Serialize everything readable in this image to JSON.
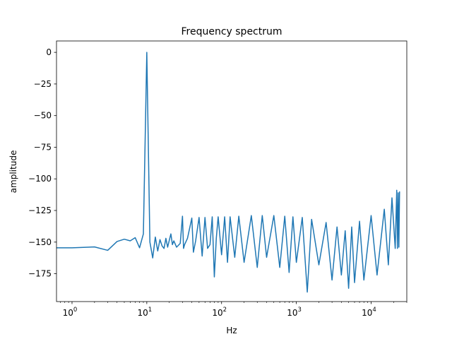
{
  "chart_data": {
    "type": "line",
    "title": "Frequency spectrum",
    "xlabel": "Hz",
    "ylabel": "amplitude",
    "x_scale": "log",
    "xlim": [
      0.62,
      30000
    ],
    "ylim": [
      -197,
      9
    ],
    "grid": false,
    "legend": "none",
    "line_color": "#1f77b4",
    "y_ticks": [
      0,
      -25,
      -50,
      -75,
      -100,
      -125,
      -150,
      -175
    ],
    "y_tick_labels": [
      "0",
      "−25",
      "−50",
      "−75",
      "−100",
      "−125",
      "−150",
      "−175"
    ],
    "x_ticks": [
      1,
      10,
      100,
      1000,
      10000
    ],
    "x_tick_labels": [
      {
        "base": "10",
        "exp": "0"
      },
      {
        "base": "10",
        "exp": "1"
      },
      {
        "base": "10",
        "exp": "2"
      },
      {
        "base": "10",
        "exp": "3"
      },
      {
        "base": "10",
        "exp": "4"
      }
    ],
    "series": [
      {
        "values": [
          [
            0.5,
            -154.5
          ],
          [
            1,
            -154.5
          ],
          [
            2,
            -153.8
          ],
          [
            3,
            -156.5
          ],
          [
            4,
            -149.5
          ],
          [
            5,
            -147.7
          ],
          [
            6,
            -149.0
          ],
          [
            7,
            -146.5
          ],
          [
            8,
            -154.5
          ],
          [
            9,
            -143.5
          ],
          [
            10,
            0
          ],
          [
            11,
            -150.0
          ],
          [
            12,
            -162.5
          ],
          [
            13,
            -146.0
          ],
          [
            14,
            -157.0
          ],
          [
            15,
            -148.0
          ],
          [
            16,
            -153.0
          ],
          [
            17,
            -155.0
          ],
          [
            18,
            -147.0
          ],
          [
            19,
            -154.0
          ],
          [
            20,
            -148.5
          ],
          [
            21,
            -143.5
          ],
          [
            22,
            -152.0
          ],
          [
            23,
            -149.0
          ],
          [
            25,
            -154.0
          ],
          [
            28,
            -151.0
          ],
          [
            30,
            -129.5
          ],
          [
            31,
            -155.0
          ],
          [
            32,
            -152.0
          ],
          [
            35,
            -147.0
          ],
          [
            40,
            -131.0
          ],
          [
            42,
            -158.0
          ],
          [
            45,
            -149.0
          ],
          [
            50,
            -130.5
          ],
          [
            55,
            -161.0
          ],
          [
            60,
            -130.5
          ],
          [
            65,
            -155.0
          ],
          [
            70,
            -152.0
          ],
          [
            75,
            -130.0
          ],
          [
            80,
            -177.5
          ],
          [
            85,
            -147.0
          ],
          [
            90,
            -130.0
          ],
          [
            100,
            -160.0
          ],
          [
            110,
            -130.0
          ],
          [
            120,
            -166.0
          ],
          [
            130,
            -130.0
          ],
          [
            150,
            -162.0
          ],
          [
            170,
            -129.5
          ],
          [
            200,
            -166.0
          ],
          [
            250,
            -129.0
          ],
          [
            300,
            -170.0
          ],
          [
            350,
            -129.0
          ],
          [
            400,
            -162.0
          ],
          [
            500,
            -129.0
          ],
          [
            600,
            -170.0
          ],
          [
            700,
            -129.5
          ],
          [
            800,
            -174.0
          ],
          [
            900,
            -130.0
          ],
          [
            1000,
            -166.0
          ],
          [
            1200,
            -130.5
          ],
          [
            1400,
            -189.5
          ],
          [
            1600,
            -132.0
          ],
          [
            2000,
            -168.0
          ],
          [
            2500,
            -134.5
          ],
          [
            3000,
            -180.0
          ],
          [
            3500,
            -138.0
          ],
          [
            4000,
            -176.0
          ],
          [
            4500,
            -141.0
          ],
          [
            5000,
            -186.5
          ],
          [
            5500,
            -138.0
          ],
          [
            6000,
            -182.0
          ],
          [
            7000,
            -133.5
          ],
          [
            8000,
            -180.0
          ],
          [
            10000,
            -129.0
          ],
          [
            12000,
            -176.0
          ],
          [
            15000,
            -124.0
          ],
          [
            17000,
            -168.0
          ],
          [
            19000,
            -115.0
          ],
          [
            21000,
            -155.0
          ],
          [
            22000,
            -109.0
          ],
          [
            22500,
            -155.0
          ],
          [
            23000,
            -111.0
          ],
          [
            23500,
            -154.0
          ],
          [
            24000,
            -110.0
          ]
        ]
      }
    ]
  }
}
